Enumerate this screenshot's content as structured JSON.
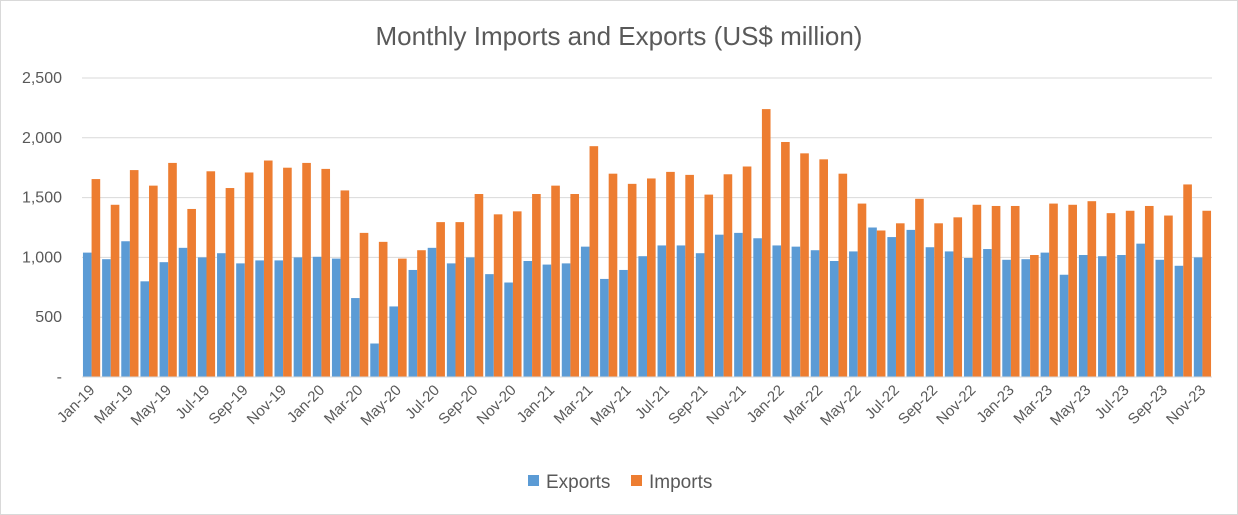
{
  "chart_data": {
    "type": "bar",
    "title": "Monthly Imports and Exports (US$ million)",
    "xlabel": "",
    "ylabel": "",
    "ylim": [
      0,
      2500
    ],
    "yticks": [
      0,
      500,
      1000,
      1500,
      2000,
      2500
    ],
    "ytick_labels": [
      "-",
      "500",
      "1,000",
      "1,500",
      "2,000",
      "2,500"
    ],
    "grid": true,
    "legend_position": "bottom",
    "colors": {
      "Exports": "#5b9bd5",
      "Imports": "#ed7d31",
      "grid": "#d9d9d9",
      "text": "#595959"
    },
    "categories": [
      "Jan-19",
      "Feb-19",
      "Mar-19",
      "Apr-19",
      "May-19",
      "Jun-19",
      "Jul-19",
      "Aug-19",
      "Sep-19",
      "Oct-19",
      "Nov-19",
      "Dec-19",
      "Jan-20",
      "Feb-20",
      "Mar-20",
      "Apr-20",
      "May-20",
      "Jun-20",
      "Jul-20",
      "Aug-20",
      "Sep-20",
      "Oct-20",
      "Nov-20",
      "Dec-20",
      "Jan-21",
      "Feb-21",
      "Mar-21",
      "Apr-21",
      "May-21",
      "Jun-21",
      "Jul-21",
      "Aug-21",
      "Sep-21",
      "Oct-21",
      "Nov-21",
      "Dec-21",
      "Jan-22",
      "Feb-22",
      "Mar-22",
      "Apr-22",
      "May-22",
      "Jun-22",
      "Jul-22",
      "Aug-22",
      "Sep-22",
      "Oct-22",
      "Nov-22",
      "Dec-22",
      "Jan-23",
      "Feb-23",
      "Mar-23",
      "Apr-23",
      "May-23",
      "Jun-23",
      "Jul-23",
      "Aug-23",
      "Sep-23",
      "Oct-23",
      "Nov-23"
    ],
    "tick_labels": [
      "Jan-19",
      "Mar-19",
      "May-19",
      "Jul-19",
      "Sep-19",
      "Nov-19",
      "Jan-20",
      "Mar-20",
      "May-20",
      "Jul-20",
      "Sep-20",
      "Nov-20",
      "Jan-21",
      "Mar-21",
      "May-21",
      "Jul-21",
      "Sep-21",
      "Nov-21",
      "Jan-22",
      "Mar-22",
      "May-22",
      "Jul-22",
      "Sep-22",
      "Nov-22",
      "Jan-23",
      "Mar-23",
      "May-23",
      "Jul-23",
      "Sep-23",
      "Nov-23"
    ],
    "series": [
      {
        "name": "Exports",
        "values": [
          1040,
          985,
          1135,
          800,
          960,
          1080,
          1000,
          1035,
          950,
          975,
          975,
          1000,
          1005,
          990,
          660,
          280,
          590,
          895,
          1080,
          950,
          1000,
          860,
          790,
          970,
          940,
          950,
          1090,
          820,
          895,
          1010,
          1100,
          1100,
          1035,
          1190,
          1205,
          1160,
          1100,
          1090,
          1060,
          970,
          1050,
          1250,
          1170,
          1230,
          1085,
          1050,
          995,
          1070,
          980,
          985,
          1040,
          855,
          1020,
          1010,
          1020,
          1115,
          980,
          930,
          1000
        ]
      },
      {
        "name": "Imports",
        "values": [
          1655,
          1440,
          1730,
          1600,
          1790,
          1405,
          1720,
          1580,
          1710,
          1810,
          1750,
          1790,
          1740,
          1560,
          1205,
          1130,
          990,
          1060,
          1295,
          1295,
          1530,
          1360,
          1385,
          1530,
          1600,
          1530,
          1930,
          1700,
          1615,
          1660,
          1715,
          1690,
          1525,
          1695,
          1760,
          2240,
          1965,
          1870,
          1820,
          1700,
          1450,
          1225,
          1285,
          1490,
          1285,
          1335,
          1440,
          1430,
          1430,
          1020,
          1450,
          1440,
          1470,
          1370,
          1390,
          1430,
          1350,
          1610,
          1390
        ]
      }
    ]
  }
}
